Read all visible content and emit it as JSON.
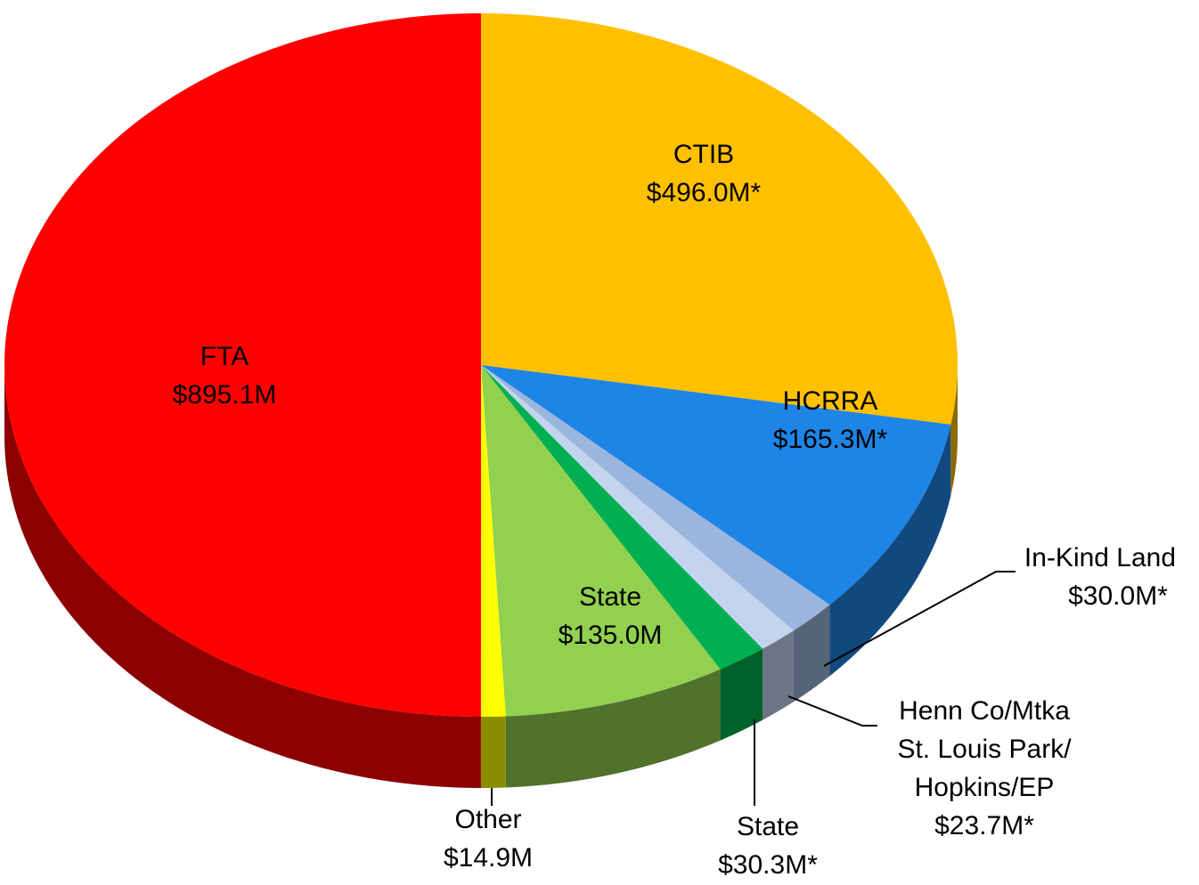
{
  "chart_data": {
    "type": "pie",
    "categories": [
      [
        "CTIB"
      ],
      [
        "HCRRA"
      ],
      [
        "In-Kind Land"
      ],
      [
        "Henn Co/Mtka",
        "St. Louis Park/",
        "Hopkins/EP"
      ],
      [
        "State"
      ],
      [
        "State"
      ],
      [
        "Other"
      ],
      [
        "FTA"
      ]
    ],
    "values": [
      496.0,
      165.3,
      30.0,
      23.7,
      30.3,
      135.0,
      14.9,
      895.1
    ],
    "value_labels": [
      "$496.0M*",
      "$165.3M*",
      "$30.0M*",
      "$23.7M*",
      "$30.3M*",
      "$135.0M",
      "$14.9M",
      "$895.1M"
    ],
    "colors": [
      "#FFC000",
      "#1E85E6",
      "#9BB6DC",
      "#C3D4EE",
      "#00B050",
      "#92D050",
      "#FFFF00",
      "#FF0000"
    ]
  }
}
